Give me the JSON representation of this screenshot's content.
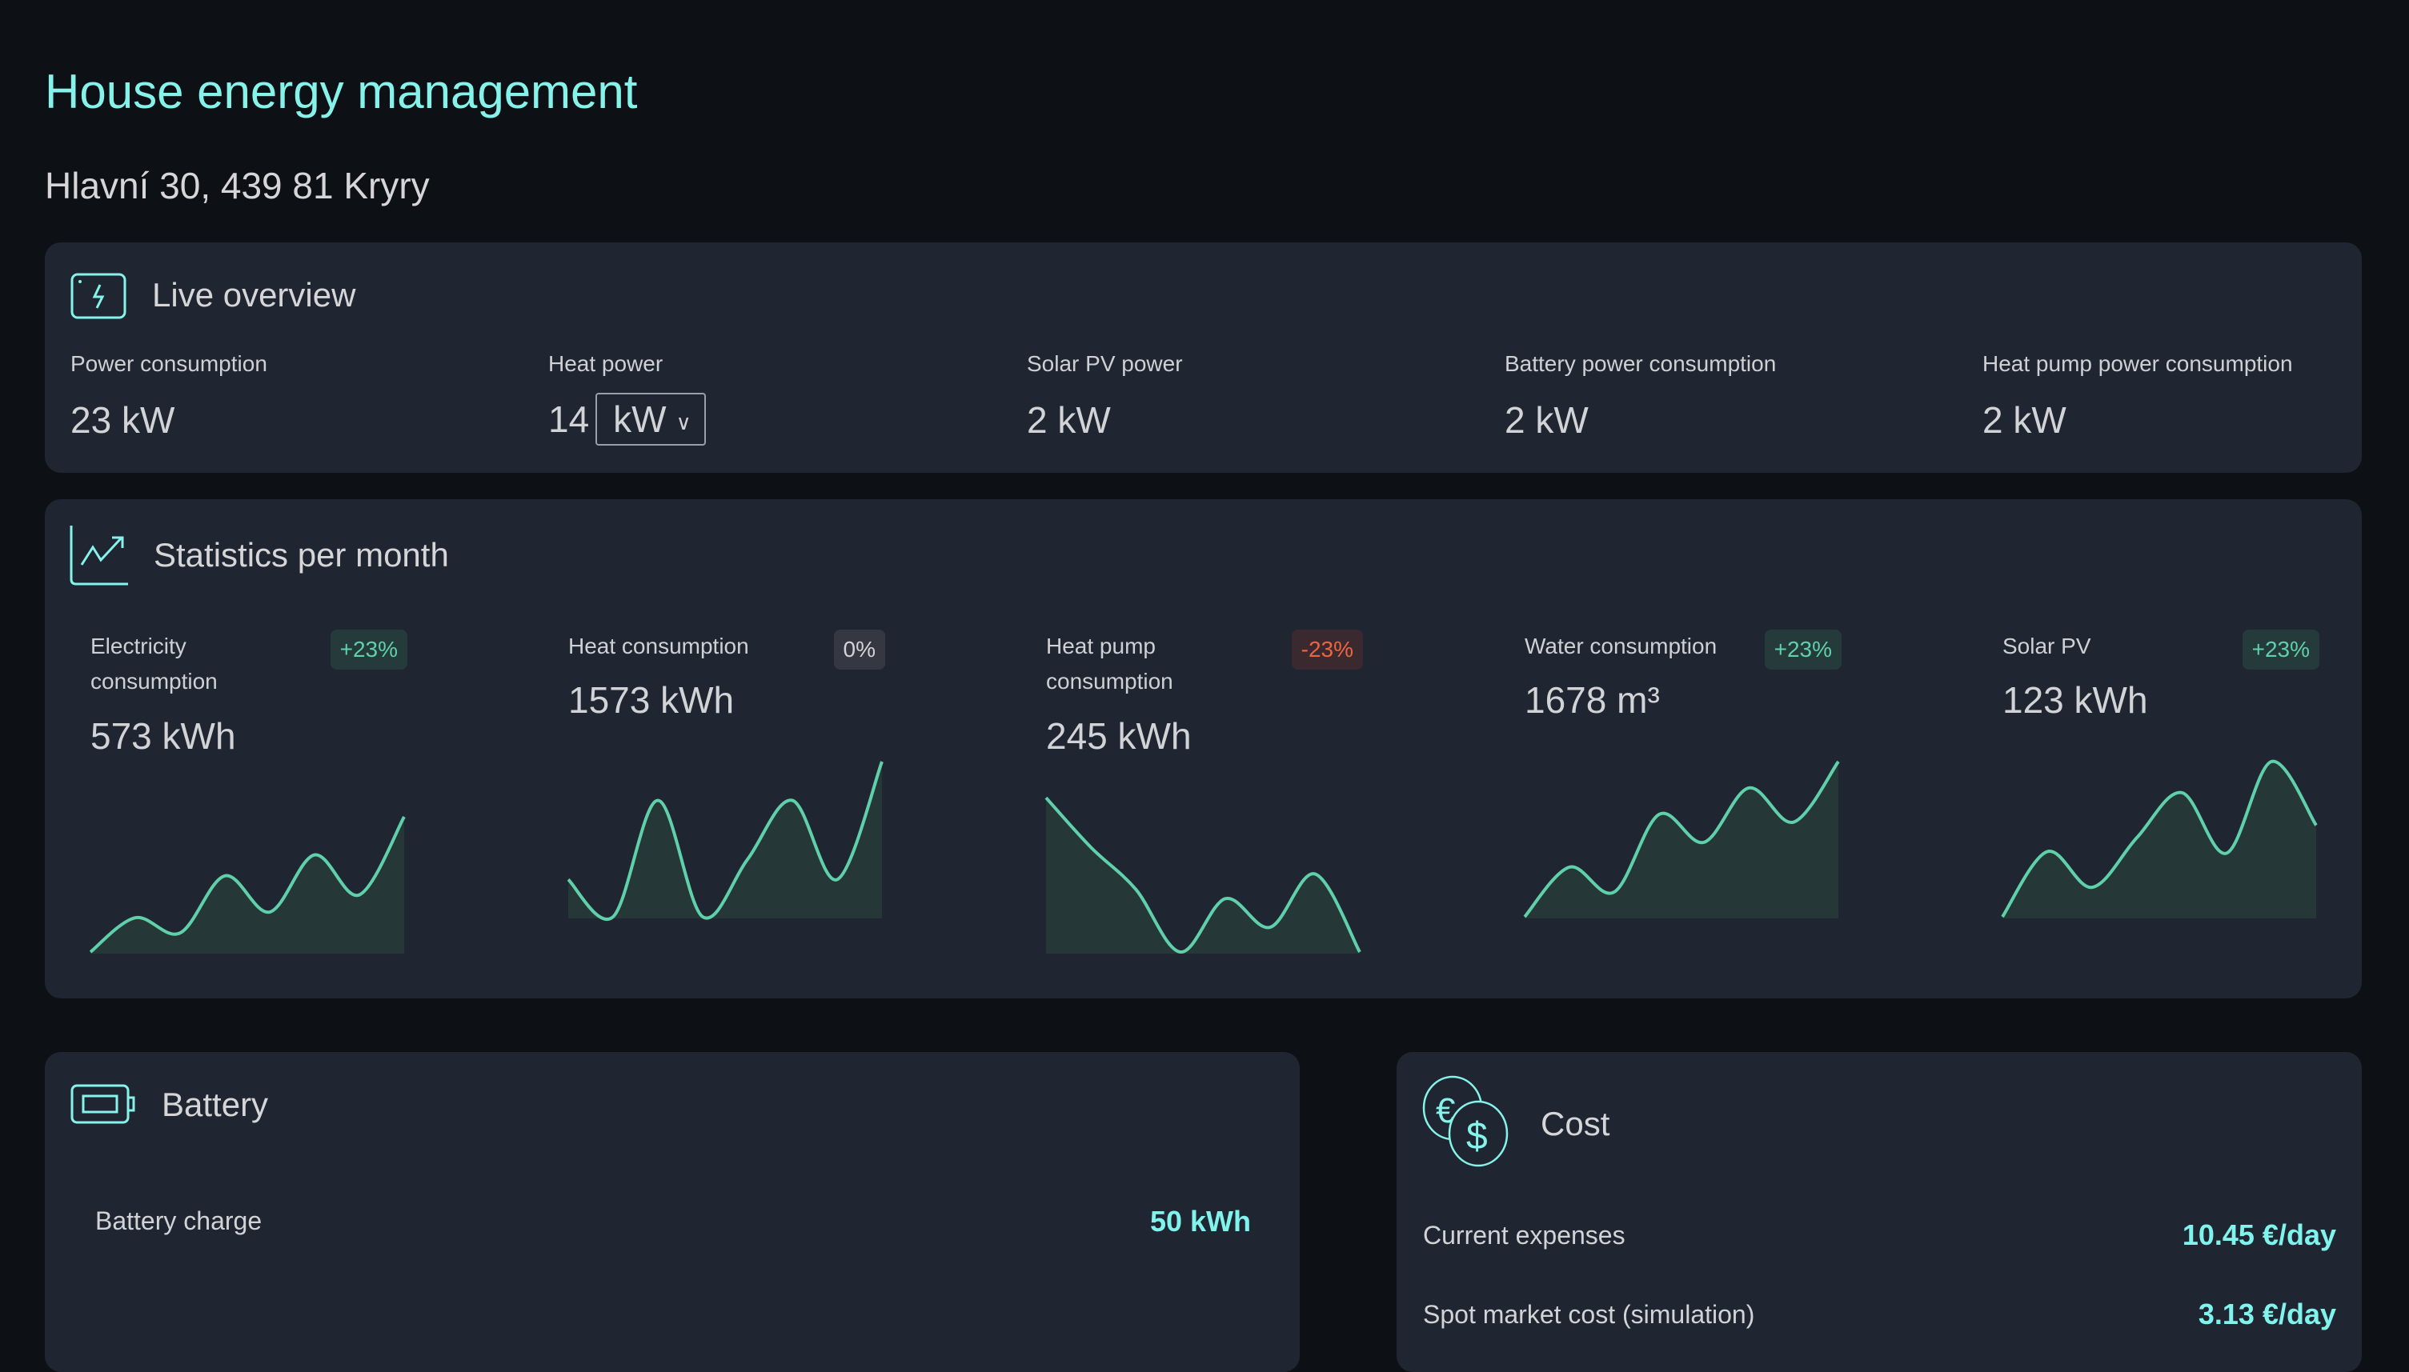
{
  "page": {
    "title": "House energy management",
    "address": "Hlavní 30, 439 81 Kryry"
  },
  "colors": {
    "accent": "#86f3ea",
    "chart_line": "#5fd0aa",
    "chart_fill": "#253737",
    "positive": "#5fd0aa",
    "negative": "#ea6640",
    "card": "#202631",
    "background": "#0d1015"
  },
  "live": {
    "title": "Live overview",
    "icon": "bolt-icon",
    "items": [
      {
        "label": "Power consumption",
        "value": "23",
        "unit": "kW"
      },
      {
        "label": "Heat power",
        "value": "14",
        "unit": "kW"
      },
      {
        "label": "Solar PV power",
        "value": "2",
        "unit": "kW"
      },
      {
        "label": "Battery power consumption",
        "value": "2",
        "unit": "kW"
      },
      {
        "label": "Heat pump power consumption",
        "value": "2",
        "unit": "kW"
      }
    ]
  },
  "stats": {
    "title": "Statistics per month",
    "icon": "trend-up-icon",
    "items": [
      {
        "label": "Electricity consumption",
        "value": "573",
        "unit": "kWh",
        "change": "+23%",
        "trend": "up",
        "sparkline": [
          0,
          0.18,
          0.1,
          0.4,
          0.21,
          0.51,
          0.3,
          0.71
        ]
      },
      {
        "label": "Heat consumption",
        "value": "1573",
        "unit": "kWh",
        "change": "0%",
        "trend": "zero",
        "sparkline": [
          0.24,
          0,
          0.75,
          0,
          0.37,
          0.75,
          0.24,
          1
        ]
      },
      {
        "label": "Heat pump consumption",
        "value": "245",
        "unit": "kWh",
        "change": "-23%",
        "trend": "down",
        "sparkline": [
          0.81,
          0.55,
          0.33,
          0,
          0.28,
          0.13,
          0.41,
          0
        ]
      },
      {
        "label": "Water consumption",
        "value": "1678",
        "unit": "m³",
        "change": "+23%",
        "trend": "up",
        "sparkline": [
          0,
          0.32,
          0.16,
          0.66,
          0.48,
          0.83,
          0.61,
          1
        ]
      },
      {
        "label": "Solar PV",
        "value": "123",
        "unit": "kWh",
        "change": "+23%",
        "trend": "up",
        "sparkline": [
          0,
          0.42,
          0.19,
          0.51,
          0.8,
          0.41,
          1,
          0.59
        ]
      }
    ]
  },
  "battery": {
    "title": "Battery",
    "icon": "battery-icon",
    "rows": [
      {
        "label": "Battery charge",
        "value": "50 kWh"
      }
    ]
  },
  "cost": {
    "title": "Cost",
    "icon": "coins-icon",
    "rows": [
      {
        "label": "Current expenses",
        "value": "10.45 €/day"
      },
      {
        "label": "Spot market cost (simulation)",
        "value": "3.13 €/day"
      }
    ]
  }
}
